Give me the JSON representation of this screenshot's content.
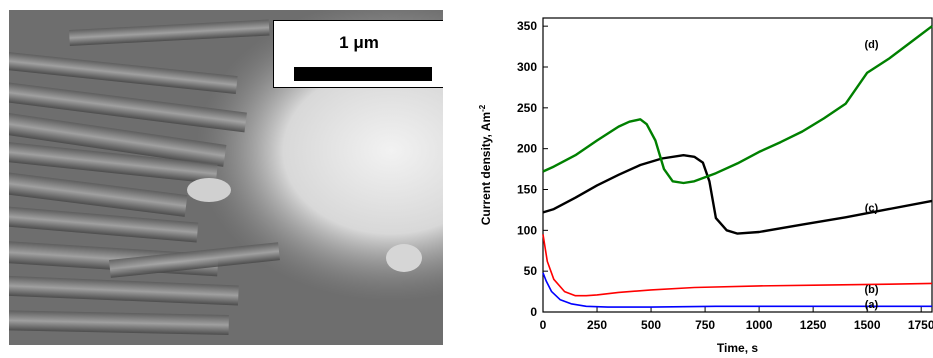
{
  "scale_bar": {
    "label": "1 μm"
  },
  "chart_data": {
    "type": "line",
    "xlabel": "Time, s",
    "ylabel": "Current density, Am",
    "ylabel_sup": "-2",
    "xlim": [
      0,
      1800
    ],
    "ylim": [
      0,
      360
    ],
    "x_ticks": [
      0,
      250,
      500,
      750,
      1000,
      1250,
      1500,
      1750
    ],
    "y_ticks": [
      0,
      50,
      100,
      150,
      200,
      250,
      300,
      350
    ],
    "series": [
      {
        "name": "(a)",
        "color": "#0000ff",
        "label_x": 1520,
        "label_y": 10,
        "x": [
          0,
          15,
          40,
          80,
          130,
          200,
          300,
          500,
          800,
          1200,
          1800
        ],
        "y": [
          48,
          38,
          25,
          15,
          10,
          7,
          6,
          6,
          7,
          7,
          7
        ]
      },
      {
        "name": "(b)",
        "color": "#ff0000",
        "label_x": 1520,
        "label_y": 28,
        "x": [
          0,
          20,
          50,
          100,
          150,
          200,
          250,
          350,
          500,
          700,
          1000,
          1300,
          1600,
          1800
        ],
        "y": [
          95,
          62,
          40,
          25,
          20,
          20,
          21,
          24,
          27,
          30,
          32,
          33,
          34,
          35
        ]
      },
      {
        "name": "(c)",
        "color": "#000000",
        "label_x": 1520,
        "label_y": 128,
        "x": [
          0,
          50,
          150,
          250,
          350,
          450,
          550,
          650,
          700,
          740,
          770,
          800,
          850,
          900,
          1000,
          1200,
          1400,
          1600,
          1800
        ],
        "y": [
          122,
          126,
          140,
          155,
          168,
          180,
          188,
          192,
          190,
          183,
          160,
          115,
          100,
          96,
          98,
          107,
          116,
          126,
          136
        ]
      },
      {
        "name": "(d)",
        "color": "#008000",
        "label_x": 1520,
        "label_y": 328,
        "x": [
          0,
          50,
          150,
          250,
          350,
          400,
          450,
          480,
          520,
          560,
          600,
          650,
          700,
          800,
          900,
          1000,
          1100,
          1200,
          1300,
          1400,
          1500,
          1600,
          1700,
          1800
        ],
        "y": [
          172,
          178,
          192,
          210,
          227,
          233,
          236,
          230,
          210,
          175,
          160,
          158,
          160,
          170,
          182,
          196,
          208,
          221,
          237,
          255,
          293,
          310,
          330,
          350
        ]
      }
    ]
  }
}
